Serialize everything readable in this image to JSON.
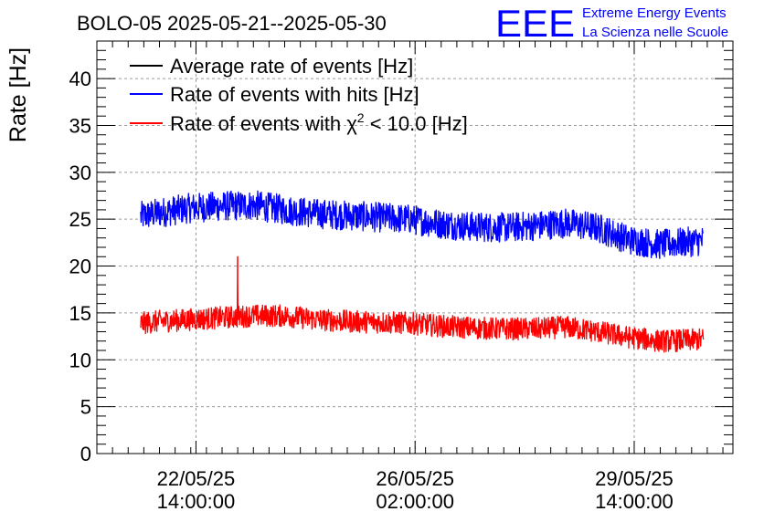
{
  "chart_data": {
    "type": "line",
    "title": "BOLO-05 2025-05-21--2025-05-30",
    "ylabel": "Rate [Hz]",
    "xlabel": "",
    "ylim": [
      0,
      44
    ],
    "yticks": [
      0,
      5,
      10,
      15,
      20,
      25,
      30,
      35,
      40
    ],
    "xlim_days": [
      0,
      10.16
    ],
    "x_ticks": [
      {
        "t": 1.583,
        "date": "22/05/25",
        "time": "14:00:00"
      },
      {
        "t": 5.083,
        "date": "26/05/25",
        "time": "02:00:00"
      },
      {
        "t": 8.583,
        "date": "29/05/25",
        "time": "14:00:00"
      }
    ],
    "grid": true,
    "legend_position": "top-left",
    "series": [
      {
        "name": "Average rate of events [Hz]",
        "color": "#000000",
        "points": []
      },
      {
        "name": "Rate of events with hits [Hz]",
        "color": "#0000ff",
        "noise_amplitude": 1.6,
        "points": [
          [
            0.7,
            25.3
          ],
          [
            1.0,
            25.7
          ],
          [
            1.5,
            26.2
          ],
          [
            2.0,
            26.4
          ],
          [
            2.5,
            26.5
          ],
          [
            3.0,
            26.0
          ],
          [
            3.5,
            25.6
          ],
          [
            4.0,
            25.4
          ],
          [
            4.5,
            25.2
          ],
          [
            5.0,
            25.0
          ],
          [
            5.5,
            24.5
          ],
          [
            6.0,
            24.2
          ],
          [
            6.5,
            24.1
          ],
          [
            7.0,
            24.3
          ],
          [
            7.5,
            24.6
          ],
          [
            8.0,
            24.1
          ],
          [
            8.5,
            22.8
          ],
          [
            9.0,
            22.3
          ],
          [
            9.5,
            22.6
          ],
          [
            9.69,
            22.7
          ]
        ]
      },
      {
        "name": "Rate of events with χ² < 10.0 [Hz]",
        "color": "#ff0000",
        "noise_amplitude": 1.2,
        "spike": {
          "t": 2.25,
          "value": 21.0
        },
        "points": [
          [
            0.7,
            13.9
          ],
          [
            1.0,
            14.1
          ],
          [
            1.5,
            14.3
          ],
          [
            2.0,
            14.5
          ],
          [
            2.5,
            14.7
          ],
          [
            3.0,
            14.7
          ],
          [
            3.5,
            14.3
          ],
          [
            4.0,
            14.1
          ],
          [
            4.5,
            14.0
          ],
          [
            5.0,
            13.9
          ],
          [
            5.5,
            13.6
          ],
          [
            6.0,
            13.4
          ],
          [
            6.5,
            13.3
          ],
          [
            7.0,
            13.3
          ],
          [
            7.5,
            13.5
          ],
          [
            8.0,
            13.0
          ],
          [
            8.5,
            12.4
          ],
          [
            9.0,
            12.0
          ],
          [
            9.5,
            12.1
          ],
          [
            9.69,
            12.2
          ]
        ]
      }
    ]
  },
  "legend_parts": {
    "chi2_prefix": "Rate of events with ",
    "chi": "χ",
    "sup": "2",
    "chi2_suffix": " < 10.0 [Hz]"
  },
  "logo": {
    "mark": "EEE",
    "line1": "Extreme Energy Events",
    "line2": "La Scienza nelle Scuole",
    "color": "#0000ff"
  }
}
